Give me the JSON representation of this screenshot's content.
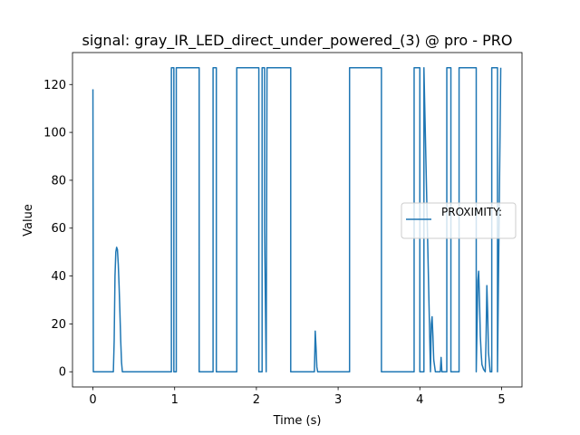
{
  "chart_data": {
    "type": "line",
    "title": "signal: gray_IR_LED_direct_under_powered_(3) @ pro - PRO",
    "xlabel": "Time (s)",
    "ylabel": "Value",
    "xlim": [
      -0.25,
      5.25
    ],
    "ylim": [
      -6.35,
      133.35
    ],
    "xticks": [
      0,
      1,
      2,
      3,
      4,
      5
    ],
    "yticks": [
      0,
      20,
      40,
      60,
      80,
      100,
      120
    ],
    "grid": false,
    "legend_position": "center-right",
    "series": [
      {
        "name": "PROXIMITY:",
        "color": "#1f77b4",
        "x": [
          0.0,
          0.005,
          0.01,
          0.25,
          0.26,
          0.27,
          0.28,
          0.29,
          0.3,
          0.31,
          0.32,
          0.33,
          0.34,
          0.35,
          0.36,
          0.37,
          0.38,
          0.39,
          0.4,
          0.96,
          0.96,
          0.99,
          0.99,
          1.02,
          1.02,
          1.07,
          1.07,
          1.3,
          1.3,
          1.47,
          1.47,
          1.51,
          1.51,
          1.76,
          1.76,
          2.03,
          2.03,
          2.07,
          2.07,
          2.1,
          2.1,
          2.12,
          2.13,
          2.14,
          2.14,
          2.16,
          2.16,
          2.42,
          2.42,
          2.71,
          2.72,
          2.73,
          2.74,
          2.75,
          3.14,
          3.14,
          3.53,
          3.53,
          3.93,
          3.93,
          4.0,
          4.0,
          4.05,
          4.05,
          4.13,
          4.14,
          4.15,
          4.16,
          4.17,
          4.19,
          4.25,
          4.26,
          4.27,
          4.33,
          4.33,
          4.38,
          4.38,
          4.48,
          4.48,
          4.69,
          4.69,
          4.71,
          4.72,
          4.73,
          4.74,
          4.75,
          4.76,
          4.78,
          4.8,
          4.81,
          4.82,
          4.83,
          4.84,
          4.86,
          4.88,
          4.88,
          4.95,
          4.95,
          4.99
        ],
        "y": [
          118,
          0,
          0,
          0,
          13,
          40,
          50,
          52,
          51,
          45,
          36,
          25,
          13,
          4,
          0,
          0,
          0,
          0,
          0,
          0,
          127,
          127,
          0,
          0,
          127,
          127,
          127,
          127,
          0,
          0,
          127,
          127,
          0,
          0,
          127,
          127,
          0,
          0,
          127,
          127,
          60,
          0,
          127,
          127,
          127,
          127,
          127,
          127,
          0,
          0,
          17,
          10,
          2,
          0,
          0,
          127,
          127,
          0,
          0,
          127,
          127,
          0,
          0,
          127,
          0,
          20,
          23,
          15,
          5,
          0,
          0,
          6,
          0,
          0,
          127,
          127,
          0,
          0,
          127,
          127,
          0,
          38,
          42,
          30,
          15,
          8,
          3,
          1,
          0,
          13,
          36,
          25,
          8,
          0,
          0,
          127,
          127,
          0,
          127
        ]
      }
    ]
  }
}
